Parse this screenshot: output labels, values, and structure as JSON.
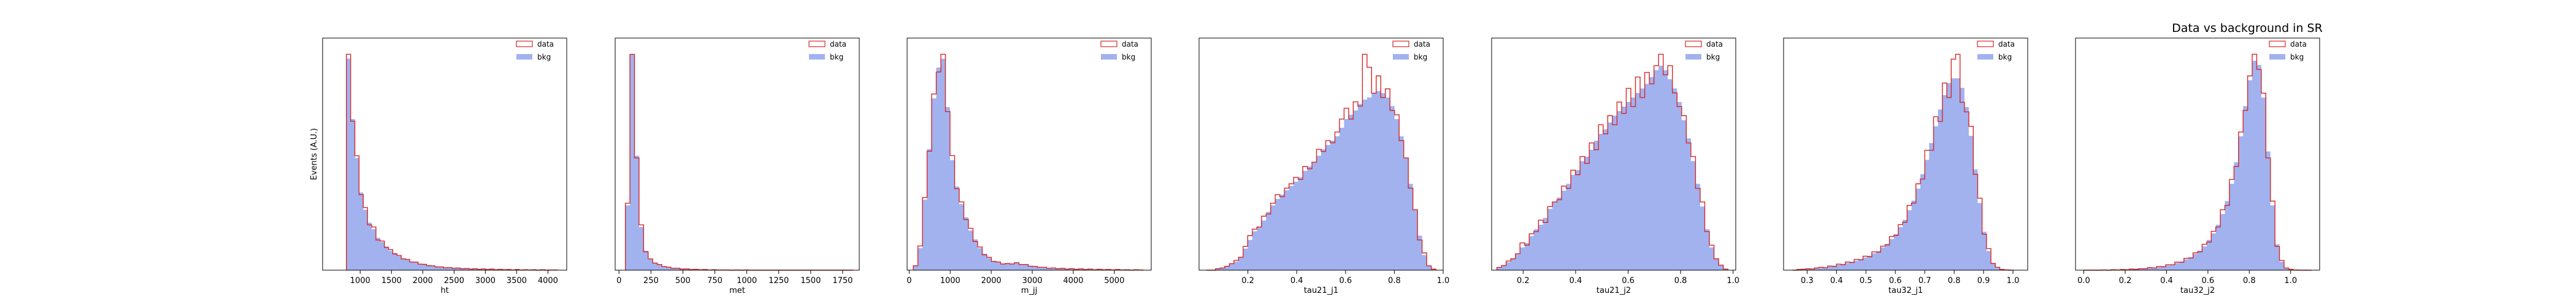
{
  "figure": {
    "title": "Data vs background in SR",
    "ylabel": "Events (A.U.)"
  },
  "chart_data": [
    {
      "type": "histogram",
      "xlabel": "ht",
      "xlim": [
        400,
        4300
      ],
      "xticks": [
        1000,
        1500,
        2000,
        2500,
        3000,
        3500,
        4000
      ],
      "legend": {
        "placement": "top-right",
        "entries": [
          "data",
          "bkg"
        ]
      },
      "colors": {
        "data": "#d62728",
        "bkg": "#6f88e6"
      },
      "bin_range": [
        780,
        4150
      ],
      "bkg": [
        0.98,
        0.7,
        0.52,
        0.36,
        0.28,
        0.22,
        0.19,
        0.15,
        0.13,
        0.11,
        0.09,
        0.08,
        0.065,
        0.055,
        0.048,
        0.04,
        0.035,
        0.03,
        0.026,
        0.022,
        0.019,
        0.016,
        0.014,
        0.012,
        0.011,
        0.01,
        0.009,
        0.008,
        0.007,
        0.006,
        0.006,
        0.005,
        0.005,
        0.004,
        0.004,
        0.003,
        0.003,
        0.003,
        0.002,
        0.002,
        0.002,
        0.002,
        0.002,
        0.001,
        0.001,
        0.001,
        0.001,
        0.001,
        0.001,
        0.001
      ],
      "data": [
        1.0,
        0.69,
        0.53,
        0.35,
        0.29,
        0.21,
        0.2,
        0.14,
        0.135,
        0.105,
        0.095,
        0.075,
        0.068,
        0.052,
        0.05,
        0.038,
        0.037,
        0.028,
        0.027,
        0.021,
        0.02,
        0.015,
        0.015,
        0.011,
        0.012,
        0.009,
        0.01,
        0.007,
        0.008,
        0.005,
        0.007,
        0.004,
        0.006,
        0.003,
        0.005,
        0.002,
        0.004,
        0.002,
        0.003,
        0.001,
        0.003,
        0.001,
        0.002,
        0.001,
        0.002,
        0.0,
        0.002,
        0.0,
        0.001,
        0.001
      ]
    },
    {
      "type": "histogram",
      "xlabel": "met",
      "xlim": [
        -30,
        1880
      ],
      "xticks": [
        0,
        250,
        500,
        750,
        1000,
        1250,
        1500,
        1750
      ],
      "legend": {
        "placement": "top-right",
        "entries": [
          "data",
          "bkg"
        ]
      },
      "colors": {
        "data": "#d62728",
        "bkg": "#6f88e6"
      },
      "bin_range": [
        50,
        1830
      ],
      "bkg": [
        0.3,
        1.0,
        0.53,
        0.2,
        0.09,
        0.05,
        0.035,
        0.025,
        0.018,
        0.013,
        0.01,
        0.008,
        0.006,
        0.005,
        0.004,
        0.003,
        0.003,
        0.002,
        0.002,
        0.002,
        0.001,
        0.001,
        0.001,
        0.001,
        0.001,
        0.001,
        0.001,
        0.0,
        0.0,
        0.0,
        0.0,
        0.0,
        0.0,
        0.0,
        0.0,
        0.0,
        0.0,
        0.0,
        0.0,
        0.0,
        0.0,
        0.0,
        0.0,
        0.0,
        0.0,
        0.0,
        0.0,
        0.0,
        0.0,
        0.0
      ],
      "data": [
        0.31,
        1.0,
        0.52,
        0.21,
        0.085,
        0.052,
        0.033,
        0.026,
        0.017,
        0.014,
        0.009,
        0.009,
        0.005,
        0.006,
        0.003,
        0.004,
        0.002,
        0.003,
        0.001,
        0.002,
        0.001,
        0.001,
        0.001,
        0.0,
        0.001,
        0.0,
        0.001,
        0.0,
        0.0,
        0.0,
        0.0,
        0.0,
        0.0,
        0.0,
        0.0,
        0.0,
        0.0,
        0.0,
        0.0,
        0.0,
        0.0,
        0.0,
        0.0,
        0.0,
        0.0,
        0.0,
        0.0,
        0.0,
        0.0,
        0.0
      ]
    },
    {
      "type": "histogram",
      "xlabel": "m_jj",
      "xlim": [
        -50,
        5900
      ],
      "xticks": [
        0,
        1000,
        2000,
        3000,
        4000,
        5000
      ],
      "legend": {
        "placement": "top-right",
        "entries": [
          "data",
          "bkg"
        ]
      },
      "colors": {
        "data": "#d62728",
        "bkg": "#6f88e6"
      },
      "bin_range": [
        100,
        5700
      ],
      "bkg": [
        0.02,
        0.1,
        0.32,
        0.55,
        0.78,
        0.92,
        0.96,
        0.74,
        0.5,
        0.38,
        0.3,
        0.24,
        0.18,
        0.14,
        0.1,
        0.075,
        0.055,
        0.042,
        0.035,
        0.03,
        0.028,
        0.03,
        0.032,
        0.028,
        0.024,
        0.02,
        0.016,
        0.014,
        0.012,
        0.01,
        0.009,
        0.008,
        0.007,
        0.006,
        0.006,
        0.005,
        0.005,
        0.004,
        0.004,
        0.003,
        0.003,
        0.003,
        0.002,
        0.002,
        0.002,
        0.002,
        0.001,
        0.001,
        0.001,
        0.001
      ],
      "data": [
        0.02,
        0.11,
        0.33,
        0.54,
        0.8,
        0.9,
        0.98,
        0.72,
        0.52,
        0.37,
        0.31,
        0.23,
        0.19,
        0.13,
        0.105,
        0.07,
        0.058,
        0.04,
        0.037,
        0.028,
        0.03,
        0.028,
        0.034,
        0.026,
        0.026,
        0.018,
        0.017,
        0.013,
        0.013,
        0.009,
        0.01,
        0.007,
        0.008,
        0.005,
        0.007,
        0.004,
        0.006,
        0.003,
        0.005,
        0.002,
        0.004,
        0.002,
        0.003,
        0.001,
        0.003,
        0.001,
        0.002,
        0.0,
        0.002,
        0.001
      ]
    },
    {
      "type": "histogram",
      "xlabel": "tau21_j1",
      "xlim": [
        0.0,
        1.0
      ],
      "xticks": [
        0.2,
        0.4,
        0.6,
        0.8,
        1.0
      ],
      "legend": {
        "placement": "top-right",
        "entries": [
          "data",
          "bkg"
        ]
      },
      "colors": {
        "data": "#d62728",
        "bkg": "#6f88e6"
      },
      "bin_range": [
        0.03,
        0.97
      ],
      "bkg": [
        0.0,
        0.0,
        0.005,
        0.01,
        0.02,
        0.03,
        0.04,
        0.06,
        0.1,
        0.14,
        0.18,
        0.2,
        0.23,
        0.27,
        0.3,
        0.33,
        0.35,
        0.37,
        0.39,
        0.41,
        0.43,
        0.46,
        0.48,
        0.5,
        0.53,
        0.56,
        0.58,
        0.6,
        0.62,
        0.66,
        0.7,
        0.72,
        0.74,
        0.77,
        0.79,
        0.8,
        0.82,
        0.83,
        0.82,
        0.8,
        0.76,
        0.7,
        0.62,
        0.52,
        0.4,
        0.28,
        0.16,
        0.07,
        0.02,
        0.005
      ],
      "data": [
        0.0,
        0.0,
        0.007,
        0.01,
        0.018,
        0.03,
        0.045,
        0.06,
        0.11,
        0.16,
        0.19,
        0.2,
        0.25,
        0.26,
        0.31,
        0.35,
        0.34,
        0.38,
        0.4,
        0.43,
        0.42,
        0.48,
        0.47,
        0.5,
        0.56,
        0.55,
        0.6,
        0.59,
        0.64,
        0.7,
        0.75,
        0.7,
        0.78,
        0.76,
        1.0,
        0.94,
        0.82,
        0.9,
        0.8,
        0.84,
        0.74,
        0.72,
        0.6,
        0.52,
        0.38,
        0.28,
        0.14,
        0.08,
        0.02,
        0.005
      ]
    },
    {
      "type": "histogram",
      "xlabel": "tau21_j2",
      "xlim": [
        0.08,
        1.01
      ],
      "xticks": [
        0.2,
        0.4,
        0.6,
        0.8,
        1.0
      ],
      "legend": {
        "placement": "top-right",
        "entries": [
          "data",
          "bkg"
        ]
      },
      "colors": {
        "data": "#d62728",
        "bkg": "#6f88e6"
      },
      "bin_range": [
        0.1,
        0.98
      ],
      "bkg": [
        0.01,
        0.02,
        0.035,
        0.05,
        0.07,
        0.1,
        0.12,
        0.15,
        0.18,
        0.2,
        0.23,
        0.27,
        0.3,
        0.32,
        0.35,
        0.38,
        0.42,
        0.44,
        0.48,
        0.5,
        0.53,
        0.57,
        0.6,
        0.62,
        0.65,
        0.68,
        0.7,
        0.72,
        0.74,
        0.76,
        0.78,
        0.8,
        0.82,
        0.85,
        0.88,
        0.9,
        0.88,
        0.84,
        0.8,
        0.74,
        0.66,
        0.58,
        0.48,
        0.38,
        0.28,
        0.18,
        0.1,
        0.05,
        0.02,
        0.005
      ],
      "data": [
        0.012,
        0.02,
        0.04,
        0.05,
        0.072,
        0.12,
        0.11,
        0.16,
        0.17,
        0.22,
        0.21,
        0.28,
        0.3,
        0.31,
        0.37,
        0.36,
        0.44,
        0.42,
        0.5,
        0.47,
        0.56,
        0.53,
        0.64,
        0.6,
        0.68,
        0.64,
        0.74,
        0.69,
        0.8,
        0.72,
        0.85,
        0.76,
        0.87,
        0.82,
        0.9,
        0.95,
        0.86,
        0.9,
        0.78,
        0.72,
        0.68,
        0.56,
        0.5,
        0.36,
        0.3,
        0.17,
        0.11,
        0.05,
        0.022,
        0.005
      ]
    },
    {
      "type": "histogram",
      "xlabel": "tau32_j1",
      "xlim": [
        0.22,
        1.05
      ],
      "xticks": [
        0.3,
        0.4,
        0.5,
        0.6,
        0.7,
        0.8,
        0.9,
        1.0
      ],
      "legend": {
        "placement": "top-right",
        "entries": [
          "data",
          "bkg"
        ]
      },
      "colors": {
        "data": "#d62728",
        "bkg": "#6f88e6"
      },
      "bin_range": [
        0.25,
        1.0
      ],
      "bkg": [
        0.0,
        0.002,
        0.004,
        0.005,
        0.006,
        0.008,
        0.01,
        0.012,
        0.015,
        0.018,
        0.022,
        0.026,
        0.03,
        0.035,
        0.04,
        0.046,
        0.053,
        0.06,
        0.07,
        0.08,
        0.095,
        0.11,
        0.13,
        0.15,
        0.18,
        0.21,
        0.25,
        0.29,
        0.34,
        0.4,
        0.46,
        0.53,
        0.6,
        0.67,
        0.73,
        0.78,
        0.8,
        0.8,
        0.76,
        0.68,
        0.56,
        0.42,
        0.28,
        0.16,
        0.08,
        0.03,
        0.01,
        0.003,
        0.001,
        0.0
      ],
      "data": [
        0.0,
        0.003,
        0.004,
        0.006,
        0.005,
        0.009,
        0.012,
        0.01,
        0.017,
        0.016,
        0.025,
        0.023,
        0.034,
        0.032,
        0.045,
        0.043,
        0.058,
        0.056,
        0.076,
        0.075,
        0.1,
        0.105,
        0.14,
        0.145,
        0.19,
        0.2,
        0.27,
        0.28,
        0.36,
        0.38,
        0.5,
        0.5,
        0.64,
        0.62,
        0.78,
        0.72,
        0.88,
        0.9,
        0.7,
        0.66,
        0.6,
        0.4,
        0.3,
        0.15,
        0.09,
        0.028,
        0.012,
        0.003,
        0.001,
        0.0
      ]
    },
    {
      "type": "histogram",
      "xlabel": "tau32_j2",
      "xlim": [
        -0.04,
        1.14
      ],
      "xticks": [
        0.0,
        0.2,
        0.4,
        0.6,
        0.8,
        1.0
      ],
      "legend": {
        "placement": "top-right",
        "entries": [
          "data",
          "bkg"
        ]
      },
      "colors": {
        "data": "#d62728",
        "bkg": "#6f88e6"
      },
      "bin_range": [
        0.0,
        1.1
      ],
      "bkg": [
        0.0,
        0.0,
        0.0,
        0.0,
        0.0,
        0.001,
        0.001,
        0.002,
        0.002,
        0.003,
        0.004,
        0.005,
        0.006,
        0.008,
        0.01,
        0.012,
        0.015,
        0.018,
        0.022,
        0.027,
        0.033,
        0.04,
        0.05,
        0.06,
        0.075,
        0.09,
        0.11,
        0.14,
        0.17,
        0.21,
        0.26,
        0.32,
        0.4,
        0.5,
        0.62,
        0.76,
        0.88,
        0.97,
        0.95,
        0.8,
        0.55,
        0.3,
        0.12,
        0.04,
        0.01,
        0.003,
        0.001,
        0.0,
        0.0,
        0.0
      ],
      "data": [
        0.0,
        0.0,
        0.0,
        0.0,
        0.001,
        0.0,
        0.002,
        0.001,
        0.003,
        0.002,
        0.005,
        0.004,
        0.007,
        0.007,
        0.012,
        0.01,
        0.017,
        0.016,
        0.025,
        0.025,
        0.037,
        0.037,
        0.055,
        0.056,
        0.08,
        0.085,
        0.12,
        0.13,
        0.18,
        0.2,
        0.28,
        0.3,
        0.42,
        0.48,
        0.64,
        0.74,
        0.9,
        1.0,
        0.93,
        0.82,
        0.52,
        0.32,
        0.11,
        0.045,
        0.01,
        0.004,
        0.001,
        0.0,
        0.0,
        0.0
      ]
    }
  ]
}
